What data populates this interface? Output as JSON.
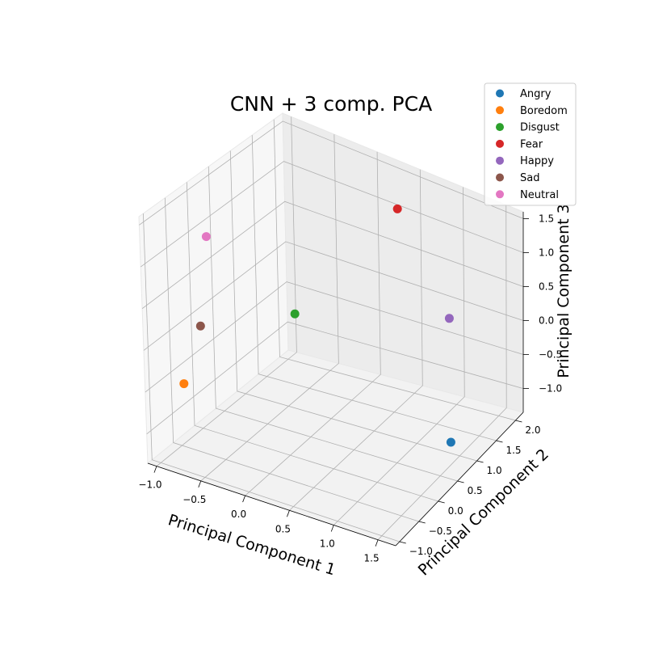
{
  "chart_data": {
    "type": "scatter",
    "projection": "3d",
    "title": "CNN + 3 comp. PCA",
    "xlabel": "Principal Component 1",
    "ylabel": "Principal Component 2",
    "zlabel": "Principal Component 3",
    "xticks": [
      "−1.0",
      "−0.5",
      "0.0",
      "0.5",
      "1.0",
      "1.5"
    ],
    "yticks": [
      "−1.0",
      "−0.5",
      "0.0",
      "0.5",
      "1.0",
      "1.5",
      "2.0"
    ],
    "zticks": [
      "−1.0",
      "−0.5",
      "0.0",
      "0.5",
      "1.0",
      "1.5"
    ],
    "xlim": [
      -1.1,
      1.7
    ],
    "ylim": [
      -1.1,
      2.2
    ],
    "zlim": [
      -1.35,
      1.6
    ],
    "grid": true,
    "legend_position": "top-right",
    "series": [
      {
        "name": "Angry",
        "color": "#1f77b4",
        "x": 1.55,
        "y": 0.67,
        "z": -0.96
      },
      {
        "name": "Boredom",
        "color": "#ff7f0e",
        "x": -0.85,
        "y": -0.71,
        "z": -0.46
      },
      {
        "name": "Disgust",
        "color": "#2ca02c",
        "x": -0.41,
        "y": 1.02,
        "z": -0.16
      },
      {
        "name": "Fear",
        "color": "#d62728",
        "x": 0.41,
        "y": 1.83,
        "z": 1.19
      },
      {
        "name": "Happy",
        "color": "#9467bd",
        "x": 1.23,
        "y": 1.35,
        "z": 0.28
      },
      {
        "name": "Sad",
        "color": "#8c564b",
        "x": -1.0,
        "y": 0.01,
        "z": -0.11
      },
      {
        "name": "Neutral",
        "color": "#e377c2",
        "x": -1.07,
        "y": 0.34,
        "z": 0.82
      }
    ]
  }
}
